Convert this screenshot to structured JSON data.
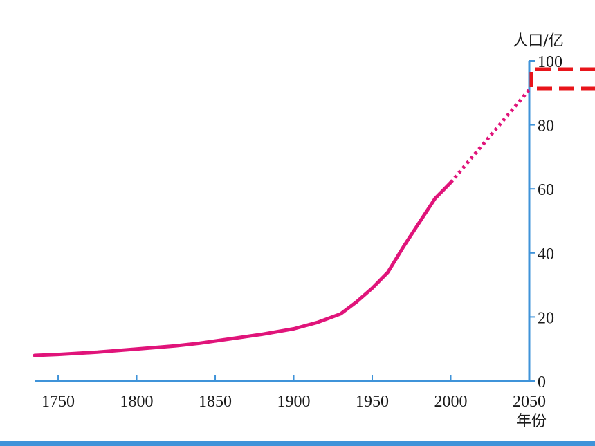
{
  "chart_data": {
    "type": "line",
    "xlabel": "年份",
    "ylabel": "人口/亿",
    "xlim": [
      1735,
      2050
    ],
    "ylim": [
      0,
      100
    ],
    "x_ticks": [
      "1750",
      "1800",
      "1850",
      "1900",
      "1950",
      "2000",
      "2050"
    ],
    "y_ticks": [
      "0",
      "20",
      "40",
      "60",
      "80",
      "100"
    ],
    "series": [
      {
        "style": "solid",
        "color": "#e0147a",
        "x": [
          1735,
          1750,
          1775,
          1800,
          1825,
          1840,
          1860,
          1880,
          1900,
          1915,
          1930,
          1940,
          1950,
          1960,
          1970,
          1980,
          1990,
          2000
        ],
        "y": [
          8.0,
          8.3,
          9.0,
          10.0,
          11.0,
          11.8,
          13.2,
          14.6,
          16.3,
          18.3,
          21.0,
          24.7,
          29.0,
          34.0,
          42.0,
          49.5,
          57.0,
          62.0
        ]
      },
      {
        "style": "dotted",
        "color": "#e0147a",
        "x": [
          2000,
          2050
        ],
        "y": [
          62.0,
          91.0
        ]
      }
    ],
    "highlight_box": {
      "color": "#e8141a",
      "style": "dashed"
    },
    "axis_color": "#3f93d9",
    "grid": false
  }
}
